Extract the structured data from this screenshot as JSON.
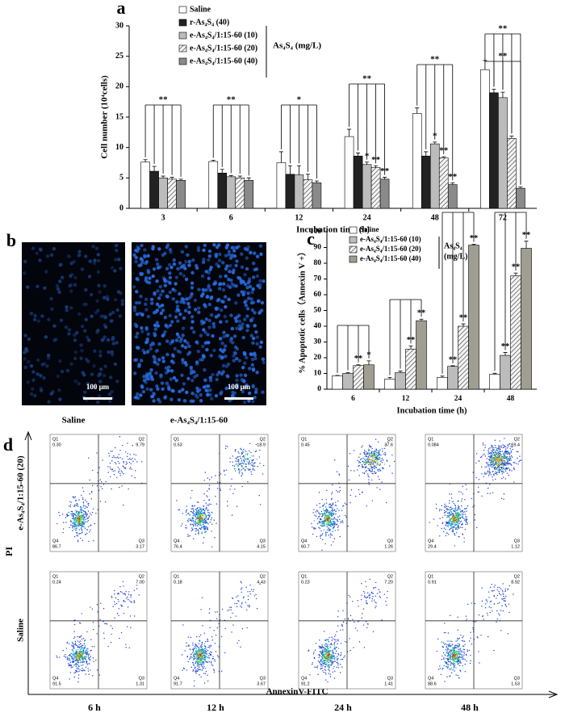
{
  "chart_data": [
    {
      "type": "bar",
      "panel_label": "a",
      "ylabel": "Cell number (10⁴cells)",
      "xlabel": "Incubation time  (h)",
      "legend_title": "As₄S₄  (mg/L)",
      "categories": [
        "3",
        "6",
        "12",
        "24",
        "48",
        "72"
      ],
      "ylim": [
        0,
        30
      ],
      "yticks": [
        0,
        5,
        10,
        15,
        20,
        25,
        30
      ],
      "series": [
        {
          "name": "Saline",
          "color": "#ffffff",
          "values": [
            7.6,
            7.7,
            7.5,
            11.8,
            15.6,
            22.8
          ],
          "errors": [
            0.4,
            0.2,
            1.8,
            1.2,
            0.9,
            1.5
          ]
        },
        {
          "name": "r-As₄S₄            (40)",
          "color": "#222222",
          "values": [
            6.1,
            5.8,
            5.6,
            8.6,
            8.6,
            19.0
          ],
          "errors": [
            0.8,
            0.6,
            1.4,
            0.5,
            0.7,
            0.6
          ]
        },
        {
          "name": "e-As₄S₄/1:15-60 (10)",
          "color": "#bcbcbc",
          "values": [
            5.0,
            5.2,
            5.5,
            7.2,
            10.6,
            18.2
          ],
          "errors": [
            0.3,
            0.2,
            1.5,
            0.4,
            0.3,
            0.9
          ]
        },
        {
          "name": "e-As₄S₄/1:15-60 (20)",
          "color": "#d8d8d8",
          "hatch": true,
          "values": [
            4.8,
            5.0,
            4.7,
            6.7,
            8.3,
            11.5
          ],
          "errors": [
            0.3,
            0.3,
            0.9,
            0.3,
            0.2,
            0.4
          ]
        },
        {
          "name": "e-As₄S₄/1:15-60 (40)",
          "color": "#8a8a8a",
          "values": [
            4.6,
            4.6,
            4.2,
            4.8,
            3.9,
            3.3
          ],
          "errors": [
            0.2,
            0.4,
            0.3,
            0.3,
            0.3,
            0.2
          ]
        }
      ],
      "annotations": [
        "**",
        "**",
        "*",
        "**",
        "*",
        "**",
        "**",
        "**",
        "*",
        "**",
        "**",
        "**",
        "**"
      ]
    },
    {
      "type": "bar",
      "panel_label": "c",
      "ylabel": "% Apoptotic cells（Annexin V +）",
      "xlabel": "Incubation time  (h)",
      "legend_title": [
        "As₄S₄",
        "(mg/L)"
      ],
      "categories": [
        "6",
        "12",
        "24",
        "48"
      ],
      "ylim": [
        0,
        100
      ],
      "yticks": [
        0,
        10,
        20,
        30,
        40,
        50,
        60,
        70,
        80,
        90,
        100
      ],
      "series": [
        {
          "name": "Saline",
          "color": "#ffffff",
          "values": [
            8.5,
            6.5,
            7.5,
            9.5
          ],
          "errors": [
            0.3,
            1.0,
            0.8,
            0.6
          ]
        },
        {
          "name": "e-As₄S₄/1:15-60 (10)",
          "color": "#bcbcbc",
          "values": [
            10,
            10.5,
            14.5,
            21.5
          ],
          "errors": [
            0.5,
            1.0,
            0.4,
            1.8
          ]
        },
        {
          "name": "e-As₄S₄/1:15-60 (20)",
          "color": "#d8d8d8",
          "hatch": true,
          "values": [
            15,
            25.5,
            40,
            72
          ],
          "errors": [
            0.5,
            2.0,
            1.5,
            1.8
          ]
        },
        {
          "name": "e-As₄S₄/1:15-60 (40)",
          "color": "#a09e92",
          "values": [
            15.5,
            43.5,
            91.5,
            89.5
          ],
          "errors": [
            2.5,
            1.0,
            0.6,
            4.5
          ]
        }
      ],
      "annotations": [
        "**",
        "*",
        "**",
        "**",
        "**",
        "**",
        "**",
        "**",
        "**",
        "**"
      ]
    }
  ],
  "panel_b": {
    "label": "b",
    "images": [
      {
        "caption": "Saline",
        "scale_bar": "100 μm"
      },
      {
        "caption": "e-As₄S₄/1:15-60",
        "scale_bar": "100 μm"
      }
    ]
  },
  "panel_d": {
    "label": "d",
    "y_axis": "PI",
    "x_axis": "AnnexinV-FITC",
    "columns": [
      "6 h",
      "12 h",
      "24 h",
      "48 h"
    ],
    "quadrants": [
      "Q1",
      "Q2",
      "Q3",
      "Q4"
    ],
    "rows": [
      {
        "label": "e-As₄S₄/1:15-60 (20)",
        "plots": [
          {
            "q1": "0.30",
            "q2": "9.79",
            "q3": "3.17",
            "q4": "86.7"
          },
          {
            "q1": "0.53",
            "q2": "18.9",
            "q3": "4.15",
            "q4": "76.4"
          },
          {
            "q1": "0.45",
            "q2": "37.6",
            "q3": "1.26",
            "q4": "60.7"
          },
          {
            "q1": "0.084",
            "q2": "69.4",
            "q3": "1.12",
            "q4": "29.4"
          }
        ]
      },
      {
        "label": "Saline",
        "plots": [
          {
            "q1": "0.24",
            "q2": "7.00",
            "q3": "1.31",
            "q4": "91.5"
          },
          {
            "q1": "0.18",
            "q2": "4.43",
            "q3": "3.67",
            "q4": "91.7"
          },
          {
            "q1": "0.23",
            "q2": "7.20",
            "q3": "1.41",
            "q4": "91.2"
          },
          {
            "q1": "0.91",
            "q2": "8.92",
            "q3": "1.53",
            "q4": "88.6"
          }
        ]
      }
    ]
  }
}
